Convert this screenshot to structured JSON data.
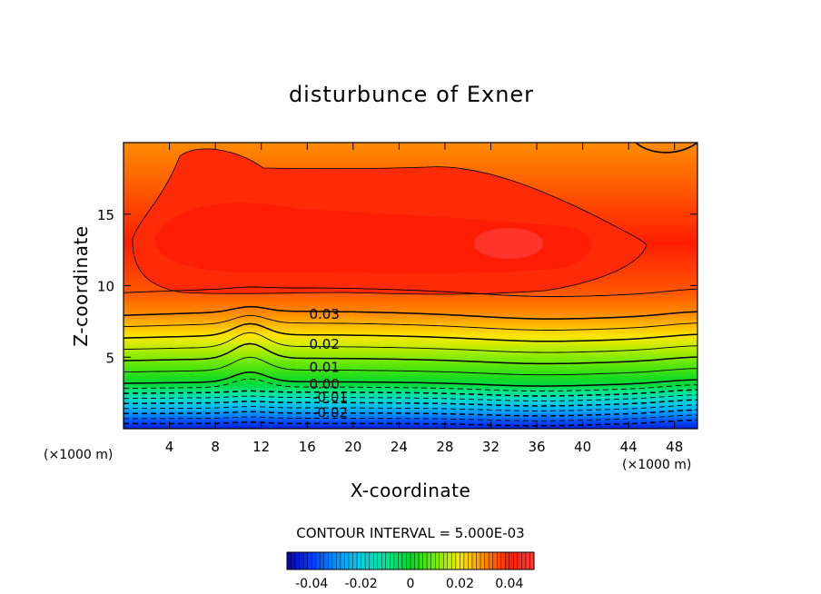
{
  "chart_data": {
    "type": "heatmap",
    "title": "disturbunce of Exner",
    "xlabel": "X-coordinate",
    "ylabel": "Z-coordinate",
    "x_unit": "(×1000 m)",
    "y_unit": "(×1000 m)",
    "xlim": [
      0,
      50
    ],
    "ylim": [
      0,
      20
    ],
    "x_ticks": [
      4,
      8,
      12,
      16,
      20,
      24,
      28,
      32,
      36,
      40,
      44,
      48
    ],
    "y_ticks": [
      5,
      10,
      15
    ],
    "contour_interval_text": "CONTOUR INTERVAL = 5.000E-03",
    "contour_interval": 0.005,
    "contour_labels": [
      {
        "text": "0.03",
        "value": 0.03,
        "x": 17.5,
        "z": 8.0
      },
      {
        "text": "0.02",
        "value": 0.02,
        "x": 17.5,
        "z": 5.9
      },
      {
        "text": "0.01",
        "value": 0.01,
        "x": 17.5,
        "z": 4.3
      },
      {
        "text": "0.00",
        "value": 0.0,
        "x": 17.5,
        "z": 3.1
      },
      {
        "text": "-0.01",
        "value": -0.01,
        "x": 18.0,
        "z": 2.2
      },
      {
        "text": "-0.02",
        "value": -0.02,
        "x": 18.0,
        "z": 1.1
      }
    ],
    "field_description_levels": [
      {
        "z": 0.0,
        "value": -0.045
      },
      {
        "z": 3.2,
        "value": 0.0
      },
      {
        "z": 8.0,
        "value": 0.03
      },
      {
        "z": 9.6,
        "value": 0.035
      },
      {
        "z": 13.0,
        "value": 0.04
      },
      {
        "z": 20.0,
        "value": 0.03
      }
    ],
    "colorbar": {
      "range": [
        -0.05,
        0.05
      ],
      "tick_values": [
        -0.04,
        -0.02,
        0,
        0.02,
        0.04
      ],
      "tick_labels": [
        "-0.04",
        "-0.02",
        "0",
        "0.02",
        "0.04"
      ]
    }
  }
}
